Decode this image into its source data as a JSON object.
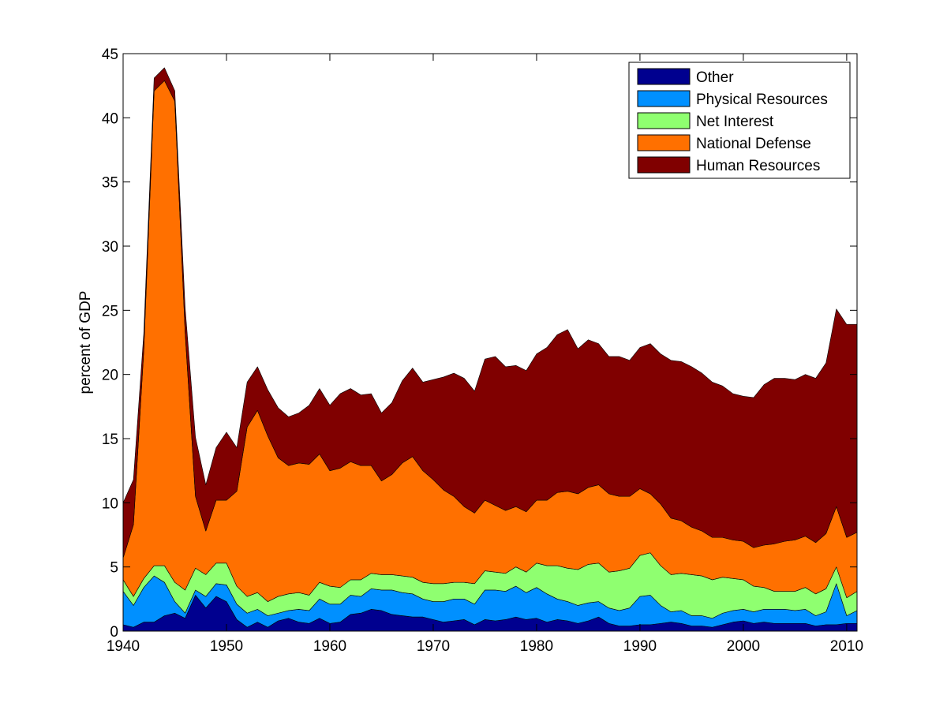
{
  "chart_data": {
    "type": "area",
    "stacked": true,
    "title": "",
    "xlabel": "",
    "ylabel": "percent of GDP",
    "xlim": [
      1940,
      2011
    ],
    "ylim": [
      0,
      45
    ],
    "xticks": [
      1940,
      1950,
      1960,
      1970,
      1980,
      1990,
      2000,
      2010
    ],
    "yticks": [
      0,
      5,
      10,
      15,
      20,
      25,
      30,
      35,
      40,
      45
    ],
    "grid": false,
    "legend_position": "top-right",
    "x": [
      1940,
      1941,
      1942,
      1943,
      1944,
      1945,
      1946,
      1947,
      1948,
      1949,
      1950,
      1951,
      1952,
      1953,
      1954,
      1955,
      1956,
      1957,
      1958,
      1959,
      1960,
      1961,
      1962,
      1963,
      1964,
      1965,
      1966,
      1967,
      1968,
      1969,
      1970,
      1971,
      1972,
      1973,
      1974,
      1975,
      1976,
      1977,
      1978,
      1979,
      1980,
      1981,
      1982,
      1983,
      1984,
      1985,
      1986,
      1987,
      1988,
      1989,
      1990,
      1991,
      1992,
      1993,
      1994,
      1995,
      1996,
      1997,
      1998,
      1999,
      2000,
      2001,
      2002,
      2003,
      2004,
      2005,
      2006,
      2007,
      2008,
      2009,
      2010,
      2011
    ],
    "series": [
      {
        "name": "Other",
        "color": "#00008f",
        "values": [
          0.5,
          0.3,
          0.7,
          0.7,
          1.2,
          1.4,
          1.0,
          2.8,
          1.8,
          2.7,
          2.3,
          0.9,
          0.3,
          0.7,
          0.3,
          0.8,
          1.0,
          0.7,
          0.6,
          1.0,
          0.6,
          0.7,
          1.3,
          1.4,
          1.7,
          1.6,
          1.3,
          1.2,
          1.1,
          1.1,
          0.9,
          0.7,
          0.8,
          0.9,
          0.5,
          0.9,
          0.8,
          0.9,
          1.1,
          0.9,
          1.0,
          0.7,
          0.9,
          0.8,
          0.6,
          0.8,
          1.1,
          0.6,
          0.4,
          0.4,
          0.5,
          0.5,
          0.6,
          0.7,
          0.6,
          0.4,
          0.4,
          0.3,
          0.5,
          0.7,
          0.8,
          0.6,
          0.7,
          0.6,
          0.6,
          0.6,
          0.6,
          0.4,
          0.5,
          0.5,
          0.6,
          0.6
        ]
      },
      {
        "name": "Physical Resources",
        "color": "#0090ff",
        "values": [
          2.6,
          1.7,
          2.7,
          3.6,
          2.6,
          0.9,
          0.4,
          0.4,
          0.9,
          1.0,
          1.3,
          1.2,
          1.1,
          1.0,
          0.9,
          0.6,
          0.6,
          1.0,
          1.0,
          1.5,
          1.5,
          1.4,
          1.5,
          1.3,
          1.6,
          1.6,
          1.9,
          1.8,
          1.8,
          1.4,
          1.4,
          1.6,
          1.7,
          1.6,
          1.6,
          2.3,
          2.4,
          2.2,
          2.4,
          2.1,
          2.4,
          2.2,
          1.6,
          1.5,
          1.4,
          1.4,
          1.2,
          1.2,
          1.2,
          1.4,
          2.2,
          2.3,
          1.4,
          0.8,
          1.0,
          0.8,
          0.8,
          0.7,
          0.9,
          0.9,
          0.9,
          0.9,
          1.0,
          1.1,
          1.1,
          1.0,
          1.1,
          0.8,
          1.0,
          3.2,
          0.6,
          1.0
        ]
      },
      {
        "name": "Net Interest",
        "color": "#8fff70",
        "values": [
          0.9,
          0.7,
          0.7,
          0.8,
          1.3,
          1.5,
          1.8,
          1.7,
          1.7,
          1.6,
          1.7,
          1.4,
          1.3,
          1.3,
          1.1,
          1.3,
          1.3,
          1.3,
          1.2,
          1.3,
          1.4,
          1.3,
          1.2,
          1.3,
          1.2,
          1.2,
          1.2,
          1.3,
          1.3,
          1.3,
          1.4,
          1.4,
          1.3,
          1.3,
          1.6,
          1.5,
          1.4,
          1.4,
          1.5,
          1.6,
          1.9,
          2.2,
          2.6,
          2.6,
          2.8,
          3.0,
          3.0,
          2.8,
          3.1,
          3.1,
          3.2,
          3.3,
          3.1,
          2.9,
          2.9,
          3.2,
          3.1,
          3.0,
          2.8,
          2.5,
          2.3,
          2.0,
          1.7,
          1.4,
          1.4,
          1.5,
          1.7,
          1.7,
          1.8,
          1.3,
          1.4,
          1.5
        ]
      },
      {
        "name": "National Defense",
        "color": "#ff7000",
        "values": [
          1.7,
          5.6,
          17.8,
          37.0,
          37.8,
          37.5,
          20.1,
          5.6,
          3.4,
          4.9,
          4.9,
          7.4,
          13.2,
          14.2,
          12.9,
          10.8,
          10.0,
          10.1,
          10.2,
          10.0,
          9.0,
          9.3,
          9.2,
          8.9,
          8.4,
          7.3,
          7.8,
          8.8,
          9.4,
          8.7,
          8.1,
          7.3,
          6.7,
          5.9,
          5.5,
          5.5,
          5.2,
          4.9,
          4.7,
          4.7,
          4.9,
          5.1,
          5.7,
          6.0,
          5.9,
          6.0,
          6.1,
          6.1,
          5.8,
          5.6,
          5.2,
          4.6,
          4.8,
          4.4,
          4.1,
          3.7,
          3.5,
          3.3,
          3.1,
          3.0,
          3.0,
          3.0,
          3.3,
          3.7,
          3.9,
          4.0,
          4.0,
          4.0,
          4.3,
          4.7,
          4.7,
          4.6
        ]
      },
      {
        "name": "Human Resources",
        "color": "#800000",
        "values": [
          4.3,
          3.5,
          1.3,
          1.0,
          1.0,
          0.8,
          1.9,
          4.6,
          3.6,
          4.1,
          5.3,
          3.4,
          3.5,
          3.4,
          3.6,
          3.9,
          3.8,
          3.9,
          4.6,
          5.1,
          5.1,
          5.8,
          5.7,
          5.5,
          5.6,
          5.3,
          5.6,
          6.4,
          6.9,
          6.9,
          7.8,
          8.8,
          9.6,
          10.0,
          9.5,
          11.0,
          11.6,
          11.2,
          11.0,
          11.0,
          11.4,
          11.9,
          12.3,
          12.6,
          11.3,
          11.5,
          11.0,
          10.7,
          10.9,
          10.6,
          11.0,
          11.7,
          11.7,
          12.3,
          12.4,
          12.5,
          12.3,
          12.1,
          11.8,
          11.4,
          11.3,
          11.7,
          12.5,
          12.9,
          12.7,
          12.5,
          12.6,
          12.8,
          13.3,
          15.4,
          16.6,
          16.2
        ]
      }
    ],
    "legend": [
      {
        "label": "Other",
        "color": "#00008f"
      },
      {
        "label": "Physical Resources",
        "color": "#0090ff"
      },
      {
        "label": "Net Interest",
        "color": "#8fff70"
      },
      {
        "label": "National Defense",
        "color": "#ff7000"
      },
      {
        "label": "Human Resources",
        "color": "#800000"
      }
    ]
  }
}
